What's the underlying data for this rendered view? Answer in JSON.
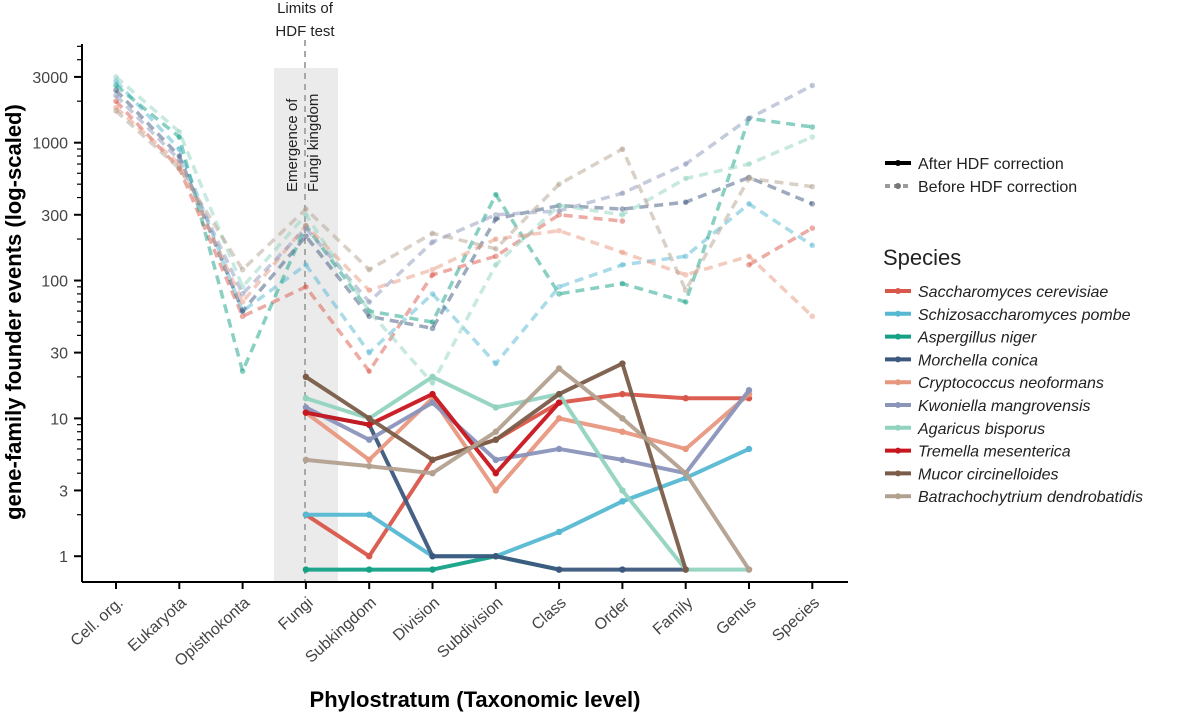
{
  "chart_data": {
    "type": "line",
    "yscale": "log",
    "ylabel": "gene-family founder events (log-scaled)",
    "xlabel": "Phylostratum (Taxonomic level)",
    "ylim": [
      0.65,
      5200
    ],
    "yticks": [
      1,
      3,
      10,
      30,
      100,
      300,
      1000,
      3000
    ],
    "yticklabels": [
      "1",
      "3",
      "10",
      "30",
      "100",
      "300",
      "1000",
      "3000"
    ],
    "categories": [
      "Cell. org.",
      "Eukaryota",
      "Opisthokonta",
      "Fungi",
      "Subkingdom",
      "Division",
      "Subdivision",
      "Class",
      "Order",
      "Family",
      "Genus",
      "Species"
    ],
    "annotations": {
      "limits_line1": "Limits of",
      "limits_line2": "HDF test",
      "emergence_line1": "Emergence of",
      "emergence_line2": "Fungi kingdom",
      "limit_category": "Fungi"
    },
    "legend": {
      "after_label": "After HDF correction",
      "before_label": "Before HDF correction",
      "species_title": "Species"
    },
    "zero_level": 0.8,
    "series": [
      {
        "name": "Saccharomyces cerevisiae",
        "color": "#d9574a",
        "before": [
          2000,
          650,
          55,
          90,
          22,
          110,
          150,
          300,
          270,
          null,
          130,
          240
        ],
        "after": [
          null,
          null,
          null,
          2,
          1,
          5,
          7,
          13,
          15,
          14,
          14,
          null
        ]
      },
      {
        "name": "Schizosaccharomyces pombe",
        "color": "#56b8d3",
        "before": [
          2800,
          900,
          60,
          130,
          30,
          80,
          25,
          90,
          130,
          150,
          360,
          180
        ],
        "after": [
          null,
          null,
          null,
          2,
          2,
          1,
          1,
          1.5,
          2.5,
          3.7,
          6,
          null
        ]
      },
      {
        "name": "Aspergillus niger",
        "color": "#14a186",
        "before": [
          2600,
          1100,
          22,
          250,
          60,
          50,
          420,
          80,
          95,
          70,
          1500,
          1300
        ],
        "after": [
          null,
          null,
          null,
          0,
          0,
          0,
          1,
          0,
          null,
          null,
          null,
          null
        ]
      },
      {
        "name": "Morchella conica",
        "color": "#3d587e",
        "before": [
          2400,
          800,
          60,
          210,
          55,
          45,
          280,
          350,
          330,
          370,
          560,
          360
        ],
        "after": [
          null,
          null,
          null,
          11,
          9,
          1,
          1,
          0.8,
          0,
          0,
          null,
          null
        ]
      },
      {
        "name": "Cryptococcus neoformans",
        "color": "#e8977f",
        "before": [
          1800,
          700,
          70,
          250,
          85,
          120,
          200,
          230,
          160,
          110,
          150,
          55
        ],
        "after": [
          null,
          null,
          null,
          11,
          5,
          14,
          3,
          10,
          8,
          6,
          15,
          null
        ]
      },
      {
        "name": "Kwoniella mangrovensis",
        "color": "#8b95ba",
        "before": [
          2200,
          750,
          80,
          240,
          70,
          190,
          300,
          320,
          430,
          700,
          1500,
          2600
        ],
        "after": [
          null,
          null,
          null,
          12,
          7,
          13,
          5,
          6,
          5,
          4,
          16,
          null
        ]
      },
      {
        "name": "Agaricus bisporus",
        "color": "#92d3c0",
        "before": [
          3000,
          1200,
          90,
          300,
          60,
          18,
          130,
          350,
          300,
          550,
          700,
          1100
        ],
        "after": [
          null,
          null,
          null,
          14,
          10,
          20,
          12,
          15,
          3,
          0,
          0,
          null
        ]
      },
      {
        "name": "Tremella mesenterica",
        "color": "#c8161e",
        "before": [
          null,
          null,
          null,
          null,
          null,
          null,
          null,
          null,
          null,
          null,
          null,
          null
        ],
        "after": [
          null,
          null,
          null,
          11,
          9,
          15,
          4,
          13,
          null,
          null,
          null,
          null
        ]
      },
      {
        "name": "Mucor circinelloides",
        "color": "#7a5c48",
        "before": [
          null,
          null,
          null,
          null,
          null,
          null,
          null,
          null,
          null,
          null,
          null,
          null
        ],
        "after": [
          null,
          null,
          null,
          20,
          10,
          5,
          7,
          15,
          25,
          0,
          null,
          null
        ]
      },
      {
        "name": "Batrachochytrium dendrobatidis",
        "color": "#b3a190",
        "before": [
          1700,
          650,
          120,
          330,
          120,
          220,
          170,
          500,
          900,
          85,
          550,
          480
        ],
        "after": [
          null,
          null,
          null,
          5,
          4.5,
          4,
          8,
          23,
          10,
          4,
          0,
          null
        ]
      }
    ]
  }
}
